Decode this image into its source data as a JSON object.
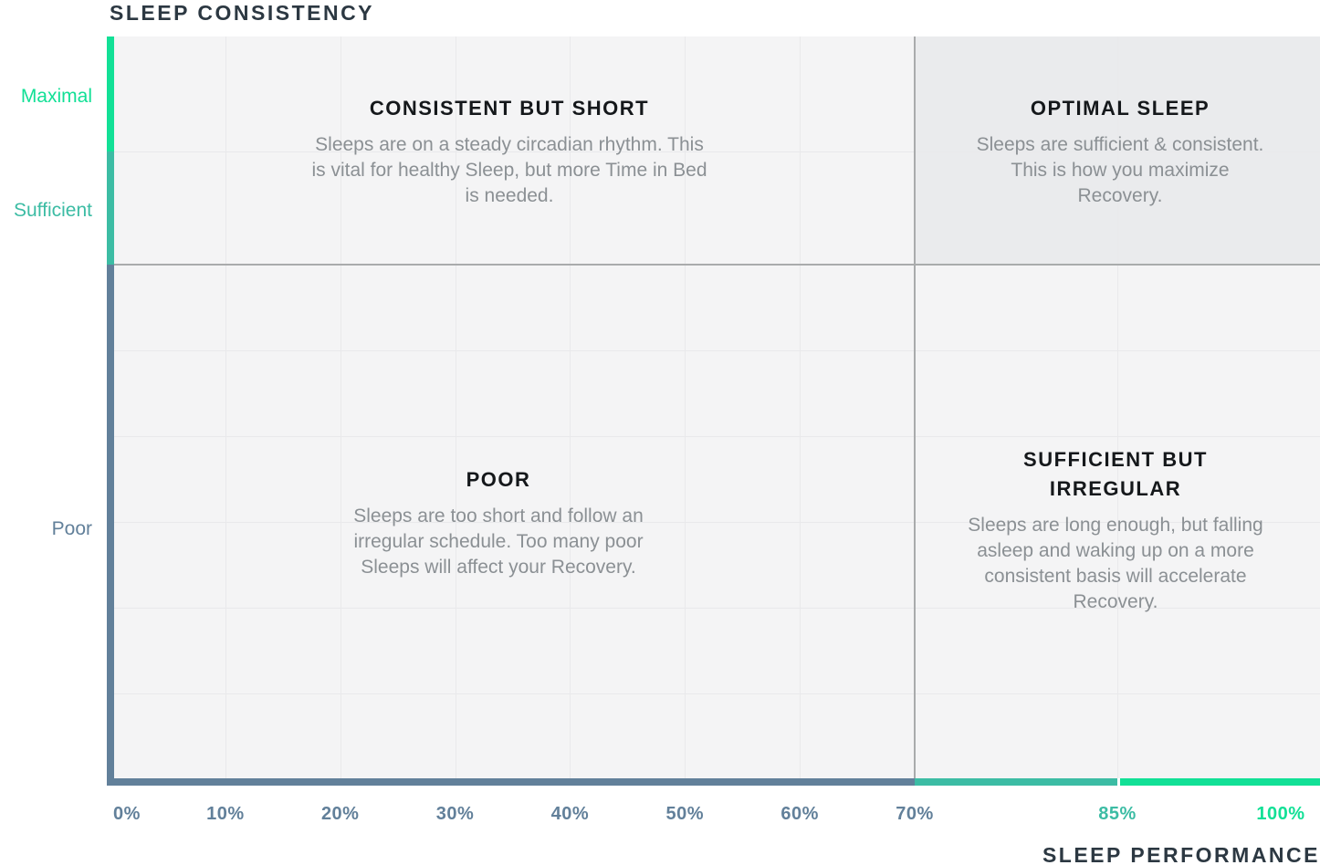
{
  "colors": {
    "bright_green": "#12E096",
    "teal": "#3CBCA4",
    "slate": "#62809A",
    "navy": "#2C3842",
    "heading_text": "#15181B",
    "body_text": "#8B9094",
    "plot_background": "#F4F4F5",
    "optimal_quadrant_background": "#EAEBED",
    "gridline": "#E9E9EB",
    "threshold_line": "#A9ABAC"
  },
  "chart_data": {
    "type": "quadrant",
    "title": "SLEEP CONSISTENCY",
    "xlabel": "SLEEP PERFORMANCE",
    "ylabel": "SLEEP CONSISTENCY",
    "grid": true,
    "legend": false,
    "x_axis": {
      "ticks": [
        {
          "label": "0%",
          "value": 0,
          "color_key": "slate"
        },
        {
          "label": "10%",
          "value": 10,
          "color_key": "slate"
        },
        {
          "label": "20%",
          "value": 20,
          "color_key": "slate"
        },
        {
          "label": "30%",
          "value": 30,
          "color_key": "slate"
        },
        {
          "label": "40%",
          "value": 40,
          "color_key": "slate"
        },
        {
          "label": "50%",
          "value": 50,
          "color_key": "slate"
        },
        {
          "label": "60%",
          "value": 60,
          "color_key": "slate"
        },
        {
          "label": "70%",
          "value": 70,
          "color_key": "slate"
        },
        {
          "label": "85%",
          "value": 85,
          "color_key": "teal"
        },
        {
          "label": "100%",
          "value": 100,
          "color_key": "bright_green"
        }
      ],
      "range": [
        "0%",
        "100%"
      ],
      "threshold_value": 70,
      "band_segments": [
        {
          "range": "0-70%",
          "color_key": "slate"
        },
        {
          "range": "70-85%",
          "color_key": "teal"
        },
        {
          "range": "85-100%",
          "color_key": "bright_green"
        }
      ]
    },
    "y_axis": {
      "zones": [
        {
          "label": "Maximal",
          "color_key": "bright_green"
        },
        {
          "label": "Sufficient",
          "color_key": "teal"
        },
        {
          "label": "Poor",
          "color_key": "slate"
        }
      ],
      "threshold": "Sufficient/Poor boundary"
    },
    "quadrants": [
      {
        "title": "CONSISTENT BUT SHORT",
        "x_range": "0-70%",
        "y_range": "Sufficient to Maximal",
        "highlighted": false,
        "description_lines": [
          "Sleeps are on a steady circadian rhythm. This",
          "is vital for healthy Sleep, but more Time in Bed",
          "is needed."
        ]
      },
      {
        "title": "OPTIMAL SLEEP",
        "x_range": "70-100%",
        "y_range": "Sufficient to Maximal",
        "highlighted": true,
        "description_lines": [
          "Sleeps are sufficient & consistent.",
          "This is how you maximize",
          "Recovery."
        ]
      },
      {
        "title": "POOR",
        "x_range": "0-70%",
        "y_range": "Poor",
        "highlighted": false,
        "description_lines": [
          "Sleeps are too short and follow an",
          "irregular schedule. Too many poor",
          "Sleeps will affect your Recovery."
        ]
      },
      {
        "title": "SUFFICIENT BUT\nIRREGULAR",
        "x_range": "70-100%",
        "y_range": "Poor",
        "highlighted": false,
        "description_lines": [
          "Sleeps are long enough, but falling",
          "asleep and waking up on a more",
          "consistent basis will accelerate",
          "Recovery."
        ]
      }
    ]
  }
}
